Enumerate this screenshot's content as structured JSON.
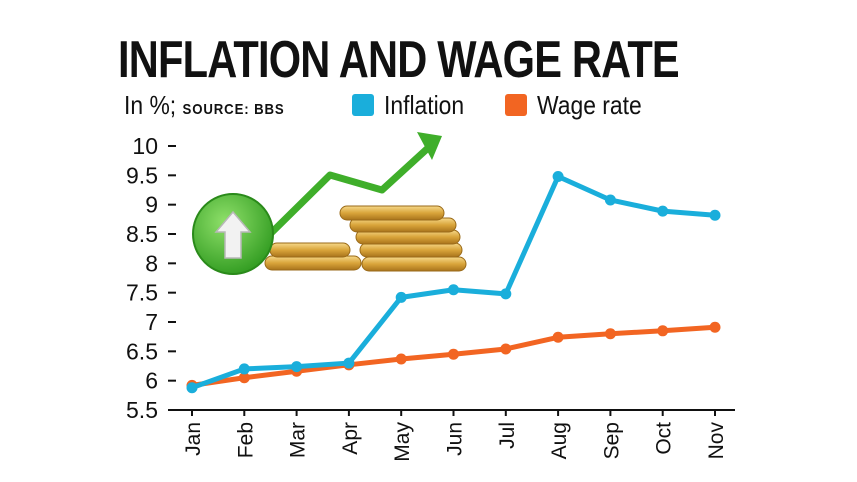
{
  "header": {
    "title": "INFLATION AND WAGE RATE",
    "unit_prefix": "In  %;",
    "source": "SOURCE: BBS"
  },
  "colors": {
    "inflation": "#1aaedb",
    "wage": "#f26522",
    "axis": "#111111"
  },
  "chart_data": {
    "type": "line",
    "title": "INFLATION AND WAGE RATE",
    "subtitle": "In %; SOURCE: BBS",
    "categories": [
      "Jan",
      "Feb",
      "Mar",
      "Apr",
      "May",
      "Jun",
      "Jul",
      "Aug",
      "Sep",
      "Oct",
      "Nov"
    ],
    "series": [
      {
        "name": "Inflation",
        "color": "#1aaedb",
        "values": [
          5.88,
          6.2,
          6.24,
          6.3,
          7.42,
          7.55,
          7.48,
          9.48,
          9.08,
          8.89,
          8.82
        ]
      },
      {
        "name": "Wage rate",
        "color": "#f26522",
        "values": [
          5.92,
          6.05,
          6.16,
          6.27,
          6.37,
          6.45,
          6.54,
          6.74,
          6.8,
          6.85,
          6.91
        ]
      }
    ],
    "yticks": [
      "10",
      "9.5",
      "9",
      "8.5",
      "8",
      "7.5",
      "7",
      "6.5",
      "6",
      "5.5"
    ],
    "ylim": [
      5.5,
      10
    ],
    "xlabel": "",
    "ylabel": "",
    "legend": "top",
    "grid": false
  }
}
